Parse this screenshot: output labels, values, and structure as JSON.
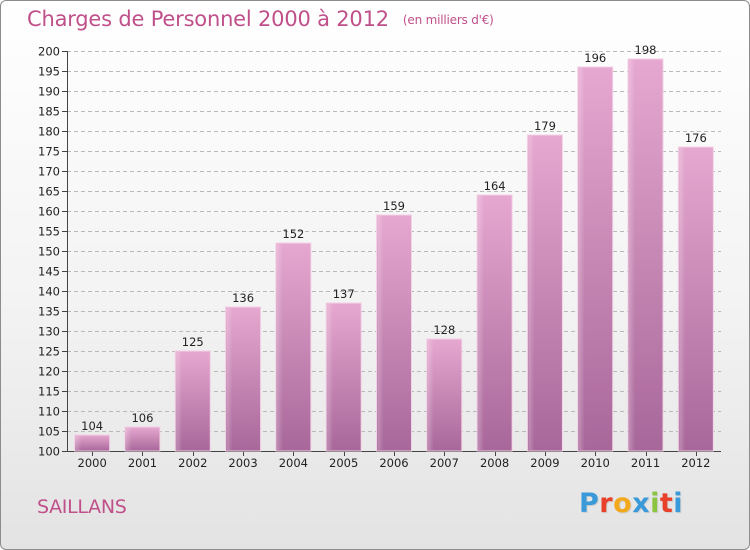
{
  "title": "Charges de Personnel 2000 à 2012",
  "unit_note": "(en milliers d'€)",
  "town": "SAILLANS",
  "logo": {
    "text": "Proxiti",
    "letter_colors": [
      "#3a9ad9",
      "#e8402a",
      "#f2a81d",
      "#3a9ad9",
      "#8bc43f",
      "#e8402a",
      "#3a9ad9"
    ]
  },
  "colors": {
    "bar_top": "#e6a8d0",
    "bar_bottom": "#a8679a",
    "bar_edge": "#f2d2e6",
    "grid": "#b9b9b9",
    "title": "#c0508a"
  },
  "chart_data": {
    "type": "bar",
    "title": "Charges de Personnel 2000 à 2012",
    "categories": [
      "2000",
      "2001",
      "2002",
      "2003",
      "2004",
      "2005",
      "2006",
      "2007",
      "2008",
      "2009",
      "2010",
      "2011",
      "2012"
    ],
    "values": [
      104,
      106,
      125,
      136,
      152,
      137,
      159,
      128,
      164,
      179,
      196,
      198,
      176
    ],
    "ylim": [
      100,
      200
    ],
    "yticks": [
      100,
      105,
      110,
      115,
      120,
      125,
      130,
      135,
      140,
      145,
      150,
      155,
      160,
      165,
      170,
      175,
      180,
      185,
      190,
      195,
      200
    ],
    "grid": true,
    "data_labels": true
  }
}
